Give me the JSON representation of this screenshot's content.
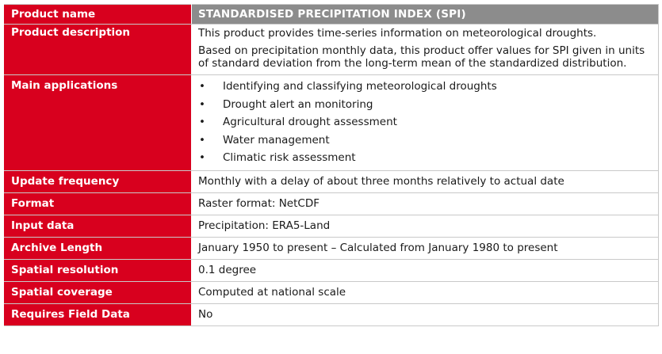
{
  "table": {
    "header": {
      "label": "Product name",
      "value": "STANDARDISED PRECIPITATION INDEX (SPI)"
    },
    "description": {
      "label": "Product description",
      "paragraphs": [
        "This product provides time-series information on meteorological droughts.",
        "Based on precipitation monthly data, this product offer values for SPI given in units of standard deviation from the long-term mean of the standardized distribution."
      ]
    },
    "applications": {
      "label": "Main applications",
      "bullet": "•",
      "items": [
        "Identifying and classifying meteorological droughts",
        "Drought alert an monitoring",
        "Agricultural drought assessment",
        "Water management",
        "Climatic risk assessment"
      ]
    },
    "rows": [
      {
        "label": "Update frequency",
        "value": "Monthly with a delay of about three months relatively to actual date"
      },
      {
        "label": "Format",
        "value": "Raster format: NetCDF"
      },
      {
        "label": "Input data",
        "value": "Precipitation: ERA5-Land"
      },
      {
        "label": "Archive Length",
        "value": "January 1950 to present – Calculated from January 1980 to present"
      },
      {
        "label": "Spatial resolution",
        "value": "0.1 degree"
      },
      {
        "label": "Spatial coverage",
        "value": "Computed at national scale"
      },
      {
        "label": "Requires Field Data",
        "value": "No"
      }
    ],
    "colors": {
      "label_bg": "#d8001e",
      "header_bg": "#8c8c8c",
      "border": "#c9c9c9"
    }
  }
}
